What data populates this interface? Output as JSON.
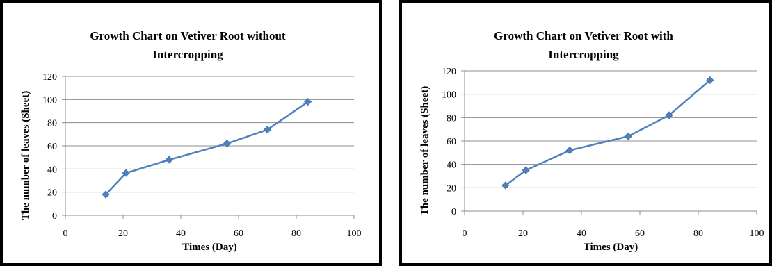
{
  "chart_data": [
    {
      "type": "line",
      "title_lines": [
        "Growth Chart on Vetiver Root without",
        "Intercropping"
      ],
      "xlabel": "Times (Day)",
      "ylabel": "The number of leaves (Sheet)",
      "xlim": [
        0,
        100
      ],
      "ylim": [
        0,
        120
      ],
      "xticks": [
        0,
        20,
        40,
        60,
        80,
        100
      ],
      "yticks": [
        0,
        20,
        40,
        60,
        80,
        100,
        120
      ],
      "grid": "horizontal",
      "color": "#4F81BD",
      "series": [
        {
          "x": [
            14,
            21,
            36,
            56,
            70,
            84
          ],
          "y": [
            18,
            36.5,
            48,
            62,
            74,
            98
          ]
        }
      ]
    },
    {
      "type": "line",
      "title_lines": [
        "Growth Chart on Vetiver Root with",
        "Intercropping"
      ],
      "xlabel": "Times (Day)",
      "ylabel": "The number of leaves (Sheet)",
      "xlim": [
        0,
        100
      ],
      "ylim": [
        0,
        120
      ],
      "xticks": [
        0,
        20,
        40,
        60,
        80,
        100
      ],
      "yticks": [
        0,
        20,
        40,
        60,
        80,
        100,
        120
      ],
      "grid": "horizontal",
      "color": "#4F81BD",
      "series": [
        {
          "x": [
            14,
            21,
            36,
            56,
            70,
            84
          ],
          "y": [
            22,
            35,
            52,
            64,
            82,
            112
          ]
        }
      ]
    }
  ]
}
